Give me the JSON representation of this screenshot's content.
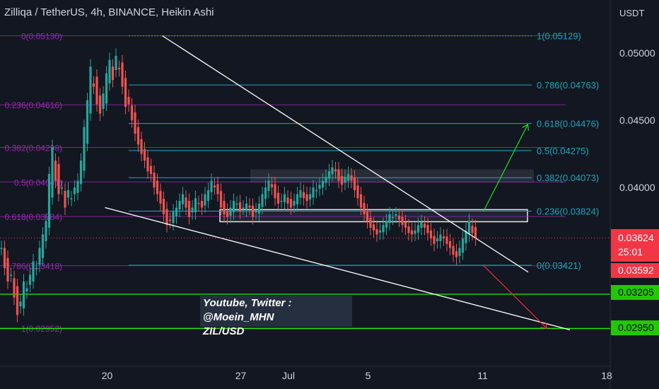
{
  "header": {
    "title": "Zilliqa / TetherUS, 4h, BINANCE, Heikin Ashi",
    "currency": "USDT"
  },
  "colors": {
    "background": "#131722",
    "candle_up": "#26a69a",
    "candle_down": "#ef5350",
    "fib_left": "#9c27b0",
    "fib_right": "#22a5b8",
    "support_line": "#22ee00",
    "trend_line": "#ffffff",
    "price_tag": "#f23645",
    "level_tag": "#22c900",
    "zone": "#e8e8e8",
    "arrow_up": "#22dd22",
    "arrow_down": "#e83030"
  },
  "price_axis": {
    "ticks": [
      {
        "value": 0.05,
        "label": "0.05000"
      },
      {
        "value": 0.045,
        "label": "0.04500"
      },
      {
        "value": 0.04,
        "label": "0.04000"
      }
    ],
    "tags": [
      {
        "value": 0.03624,
        "label": "0.03624",
        "style": "red",
        "lines": [
          "0.03624",
          "25:01"
        ]
      },
      {
        "value": 0.03592,
        "label": "0.03592",
        "style": "red"
      },
      {
        "value": 0.03205,
        "label": "0.03205",
        "style": "green"
      },
      {
        "value": 0.0295,
        "label": "0.02950",
        "style": "green"
      }
    ],
    "countdown": "25:01"
  },
  "time_axis": {
    "ticks": [
      {
        "label": "20",
        "bar": 11
      },
      {
        "label": "27",
        "bar": 53
      },
      {
        "label": "Jul",
        "bar": 68
      },
      {
        "label": "5",
        "bar": 93
      },
      {
        "label": "11",
        "bar": 129
      },
      {
        "label": "18",
        "bar": 168
      }
    ]
  },
  "watermark": {
    "line1": "Youtube, Twitter : @Moein_MHN",
    "line2": "ZIL/USD"
  },
  "chart_data": {
    "type": "candlestick",
    "style": "Heikin Ashi",
    "symbol": "ZIL/USDT",
    "timeframe": "4h",
    "exchange": "BINANCE",
    "ylim": [
      0.0275,
      0.0535
    ],
    "close_series": [
      0.0355,
      0.034,
      0.033,
      0.0335,
      0.0318,
      0.0305,
      0.0315,
      0.033,
      0.0325,
      0.0335,
      0.0345,
      0.034,
      0.0355,
      0.0365,
      0.0375,
      0.041,
      0.043,
      0.0405,
      0.0395,
      0.04,
      0.0385,
      0.0398,
      0.0392,
      0.04,
      0.0405,
      0.042,
      0.0445,
      0.0465,
      0.049,
      0.0475,
      0.0462,
      0.0455,
      0.047,
      0.0485,
      0.0495,
      0.048,
      0.0498,
      0.0488,
      0.0475,
      0.046,
      0.0462,
      0.045,
      0.044,
      0.0432,
      0.0425,
      0.042,
      0.0412,
      0.041,
      0.04,
      0.0395,
      0.0388,
      0.038,
      0.0372,
      0.0375,
      0.0382,
      0.0385,
      0.039,
      0.0395,
      0.0385,
      0.0378,
      0.0385,
      0.0392,
      0.0388,
      0.0385,
      0.0395,
      0.0398,
      0.0405,
      0.04,
      0.0395,
      0.0385,
      0.038,
      0.0378,
      0.0385,
      0.039,
      0.0388,
      0.0382,
      0.0385,
      0.0388,
      0.0385,
      0.0378,
      0.0383,
      0.0388,
      0.0395,
      0.04,
      0.0405,
      0.04,
      0.0392,
      0.0388,
      0.039,
      0.0395,
      0.0388,
      0.0385,
      0.039,
      0.0395,
      0.0398,
      0.0392,
      0.039,
      0.0395,
      0.04,
      0.0398,
      0.0402,
      0.0405,
      0.0408,
      0.0412,
      0.0415,
      0.0412,
      0.0405,
      0.0402,
      0.0408,
      0.041,
      0.0405,
      0.0398,
      0.0392,
      0.0385,
      0.038,
      0.0375,
      0.037,
      0.0368,
      0.0365,
      0.0368,
      0.0372,
      0.0375,
      0.038,
      0.0378,
      0.038,
      0.0376,
      0.0372,
      0.037,
      0.0366,
      0.0365,
      0.0368,
      0.0372,
      0.0374,
      0.037,
      0.0366,
      0.0362,
      0.0358,
      0.0362,
      0.0365,
      0.0362,
      0.0358,
      0.0355,
      0.035,
      0.0348,
      0.0355,
      0.0362,
      0.0368,
      0.0375,
      0.0366,
      0.0362
    ],
    "fib_retracement_left": [
      {
        "ratio": "0",
        "price": 0.0513,
        "label": "0(0.05130)"
      },
      {
        "ratio": "0.236",
        "price": 0.04616,
        "label": "0.236(0.04616)"
      },
      {
        "ratio": "0.382",
        "price": 0.04298,
        "label": "0.382(0.04298)"
      },
      {
        "ratio": "0.5",
        "price": 0.04041,
        "label": "0.5(0.04041)"
      },
      {
        "ratio": "0.618",
        "price": 0.03784,
        "label": "0.618(0.03784)"
      },
      {
        "ratio": "0.786",
        "price": 0.03418,
        "label": "0.786(0.03418)"
      },
      {
        "ratio": "1",
        "price": 0.02952,
        "label": "1(0.02952)"
      }
    ],
    "fib_retracement_right": [
      {
        "ratio": "1",
        "price": 0.05129,
        "label": "1(0.05129)"
      },
      {
        "ratio": "0.786",
        "price": 0.04763,
        "label": "0.786(0.04763)"
      },
      {
        "ratio": "0.618",
        "price": 0.04476,
        "label": "0.618(0.04476)"
      },
      {
        "ratio": "0.5",
        "price": 0.04275,
        "label": "0.5(0.04275)"
      },
      {
        "ratio": "0.382",
        "price": 0.04073,
        "label": "0.382(0.04073)"
      },
      {
        "ratio": "0.236",
        "price": 0.03824,
        "label": "0.236(0.03824)"
      },
      {
        "ratio": "0",
        "price": 0.03421,
        "label": "0(0.03421)"
      }
    ],
    "horizontal_levels": [
      0.03205,
      0.0295
    ],
    "zones": [
      {
        "from": 0.03745,
        "to": 0.03835,
        "role": "support box"
      },
      {
        "from": 0.04035,
        "to": 0.04135,
        "role": "resistance box"
      }
    ],
    "wedge": {
      "upper": {
        "from_bar": 51,
        "from_price": 0.0513,
        "to_bar": 166,
        "to_price": 0.0337
      },
      "lower": {
        "from_bar": 3,
        "from_price": 0.0385,
        "to_bar": 172,
        "to_price": 0.0294
      }
    },
    "projections": [
      {
        "direction": "up",
        "from_bar": 151,
        "from_price": 0.0382,
        "to_bar": 157,
        "to_price": 0.0447
      },
      {
        "direction": "down",
        "from_bar": 151,
        "from_price": 0.0342,
        "to_bar": 163,
        "to_price": 0.0295
      }
    ],
    "last_price": 0.03624
  }
}
